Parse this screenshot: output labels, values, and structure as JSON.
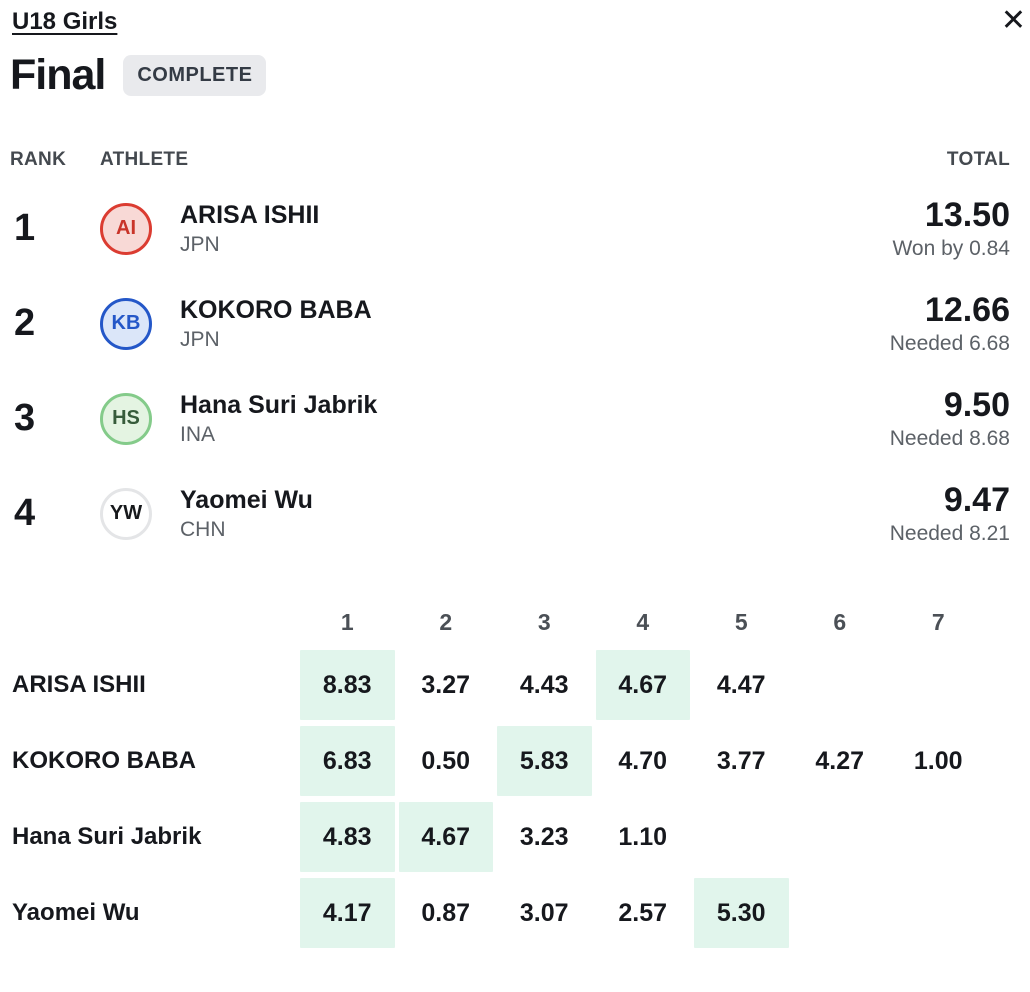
{
  "header": {
    "division": "U18 Girls",
    "round": "Final",
    "status": "COMPLETE",
    "close_icon": "✕"
  },
  "results": {
    "columns": {
      "rank": "RANK",
      "athlete": "ATHLETE",
      "total": "TOTAL"
    },
    "rows": [
      {
        "rank": "1",
        "initials": "AI",
        "name": "ARISA ISHII",
        "country": "JPN",
        "total": "13.50",
        "note": "Won by 0.84",
        "avatar_colors": {
          "border": "#db3c31",
          "bg": "#f8d9d6",
          "text": "#c93429"
        }
      },
      {
        "rank": "2",
        "initials": "KB",
        "name": "KOKORO BABA",
        "country": "JPN",
        "total": "12.66",
        "note": "Needed 6.68",
        "avatar_colors": {
          "border": "#2457c8",
          "bg": "#dbe6f9",
          "text": "#2457c8"
        }
      },
      {
        "rank": "3",
        "initials": "HS",
        "name": "Hana Suri Jabrik",
        "country": "INA",
        "total": "9.50",
        "note": "Needed 8.68",
        "avatar_colors": {
          "border": "#84cb8a",
          "bg": "#e4f4e2",
          "text": "#375c3b"
        }
      },
      {
        "rank": "4",
        "initials": "YW",
        "name": "Yaomei Wu",
        "country": "CHN",
        "total": "9.47",
        "note": "Needed 8.21",
        "avatar_colors": {
          "border": "#e4e5e7",
          "bg": "#ffffff",
          "text": "#17191c"
        }
      }
    ]
  },
  "waves": {
    "columns": [
      "1",
      "2",
      "3",
      "4",
      "5",
      "6",
      "7"
    ],
    "highlight_color": "#e1f5ec",
    "rows": [
      {
        "name": "ARISA ISHII",
        "scores": [
          "8.83",
          "3.27",
          "4.43",
          "4.67",
          "4.47"
        ],
        "highlighted_waves": [
          1,
          4
        ]
      },
      {
        "name": "KOKORO BABA",
        "scores": [
          "6.83",
          "0.50",
          "5.83",
          "4.70",
          "3.77",
          "4.27",
          "1.00"
        ],
        "highlighted_waves": [
          1,
          3
        ]
      },
      {
        "name": "Hana Suri Jabrik",
        "scores": [
          "4.83",
          "4.67",
          "3.23",
          "1.10"
        ],
        "highlighted_waves": [
          1,
          2
        ]
      },
      {
        "name": "Yaomei Wu",
        "scores": [
          "4.17",
          "0.87",
          "3.07",
          "2.57",
          "5.30"
        ],
        "highlighted_waves": [
          1,
          5
        ]
      }
    ]
  }
}
